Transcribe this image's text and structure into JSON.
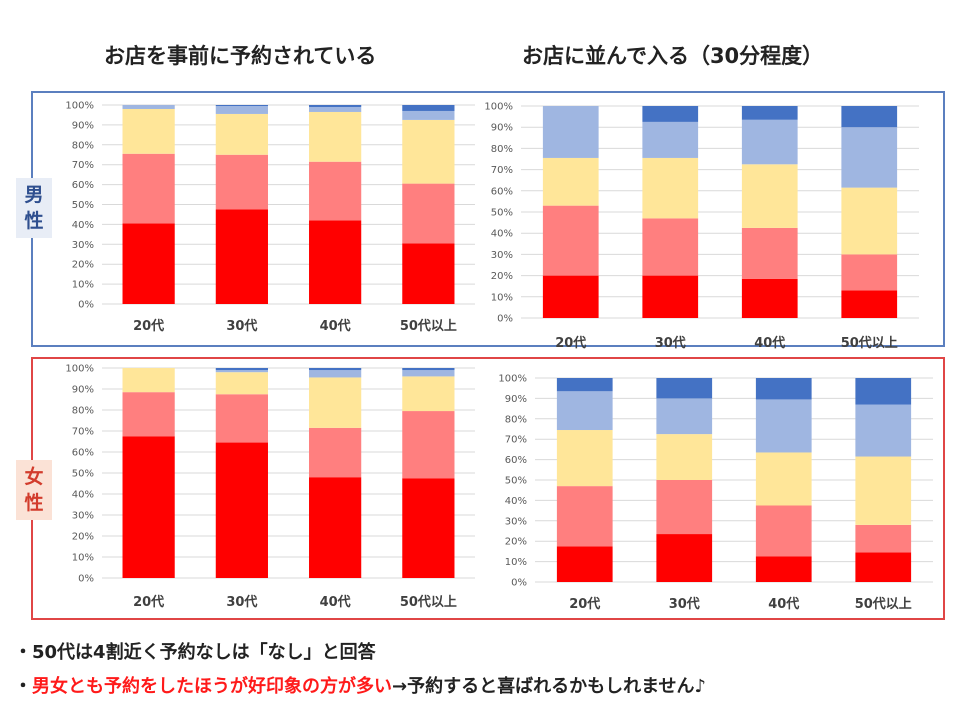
{
  "titles": {
    "left": "お店を事前に予約されている",
    "right": "お店に並んで入る（30分程度）"
  },
  "side_labels": {
    "male": "男性",
    "female": "女性"
  },
  "colors": {
    "seg1": "#ff0000",
    "seg2": "#ff7f7f",
    "seg3": "#ffe699",
    "seg4": "#9fb6e1",
    "seg5": "#4472c4",
    "male_frame": "#5b7fbf",
    "female_frame": "#e04646"
  },
  "chart_data": [
    {
      "type": "bar",
      "stacked": true,
      "panel": "male-reserved",
      "categories": [
        "20代",
        "30代",
        "40代",
        "50代以上"
      ],
      "ylim": [
        0,
        100
      ],
      "ytick_step": 10,
      "ytick_suffix": "%",
      "series": [
        {
          "values": [
            40.5,
            47.5,
            42,
            30.5
          ]
        },
        {
          "values": [
            35,
            27.5,
            29.5,
            30
          ]
        },
        {
          "values": [
            22.5,
            20.5,
            25,
            32
          ]
        },
        {
          "values": [
            2,
            4,
            2.5,
            4.5
          ]
        },
        {
          "values": [
            0,
            0.5,
            1,
            3
          ]
        }
      ]
    },
    {
      "type": "bar",
      "stacked": true,
      "panel": "male-queue",
      "categories": [
        "20代",
        "30代",
        "40代",
        "50代以上"
      ],
      "ylim": [
        0,
        100
      ],
      "ytick_step": 10,
      "ytick_suffix": "%",
      "series": [
        {
          "values": [
            20,
            20,
            18.5,
            13
          ]
        },
        {
          "values": [
            33,
            27,
            24,
            17
          ]
        },
        {
          "values": [
            22.5,
            28.5,
            30,
            31.5
          ]
        },
        {
          "values": [
            24.5,
            17,
            21,
            28.5
          ]
        },
        {
          "values": [
            0,
            7.5,
            6.5,
            10
          ]
        }
      ]
    },
    {
      "type": "bar",
      "stacked": true,
      "panel": "female-reserved",
      "categories": [
        "20代",
        "30代",
        "40代",
        "50代以上"
      ],
      "ylim": [
        0,
        100
      ],
      "ytick_step": 10,
      "ytick_suffix": "%",
      "series": [
        {
          "values": [
            67.5,
            64.5,
            48,
            47.5
          ]
        },
        {
          "values": [
            21,
            23,
            23.5,
            32
          ]
        },
        {
          "values": [
            11.5,
            10.5,
            24,
            16.5
          ]
        },
        {
          "values": [
            0,
            1,
            3.5,
            3
          ]
        },
        {
          "values": [
            0,
            1,
            1,
            1
          ]
        }
      ]
    },
    {
      "type": "bar",
      "stacked": true,
      "panel": "female-queue",
      "categories": [
        "20代",
        "30代",
        "40代",
        "50代以上"
      ],
      "ylim": [
        0,
        100
      ],
      "ytick_step": 10,
      "ytick_suffix": "%",
      "series": [
        {
          "values": [
            17.5,
            23.5,
            12.5,
            14.5
          ]
        },
        {
          "values": [
            29.5,
            26.5,
            25,
            13.5
          ]
        },
        {
          "values": [
            27.5,
            22.5,
            26,
            33.5
          ]
        },
        {
          "values": [
            19,
            17.5,
            26,
            25.5
          ]
        },
        {
          "values": [
            6.5,
            10,
            10.5,
            13
          ]
        }
      ]
    }
  ],
  "bullets": {
    "line1": "・50代は4割近く予約なしは「なし」と回答",
    "line2_prefix": "・",
    "line2_highlight": "男女とも予約をしたほうが好印象の方が多い",
    "line2_rest": "→予約すると喜ばれるかもしれません♪"
  }
}
